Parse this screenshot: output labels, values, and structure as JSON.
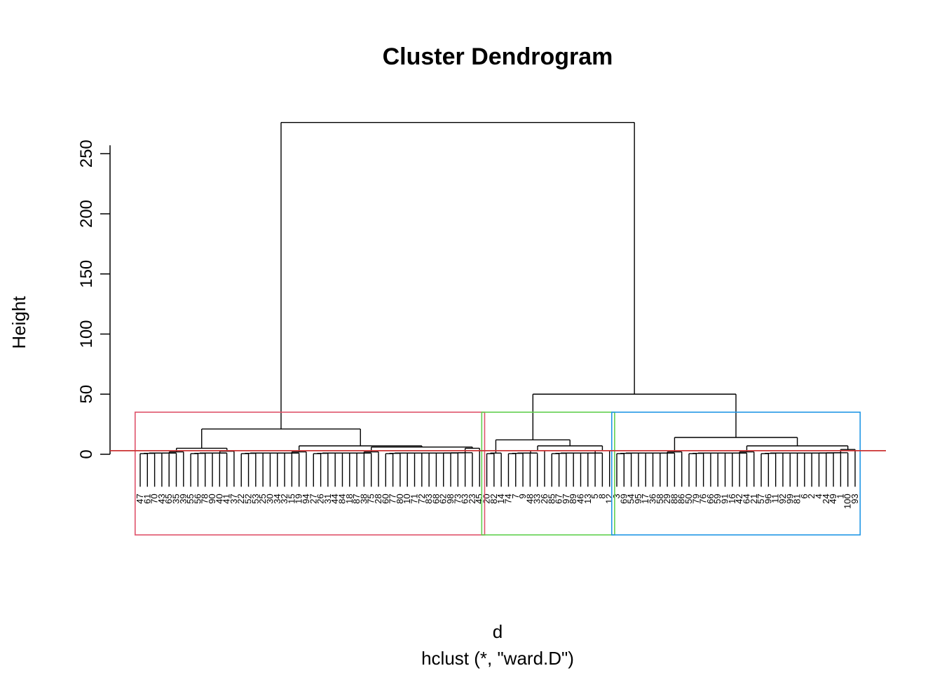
{
  "chart_data": {
    "type": "dendrogram",
    "title": "Cluster Dendrogram",
    "ylabel": "Height",
    "xlabel": "d",
    "sub": "hclust (*, \"ward.D\")",
    "ylim": [
      0,
      276
    ],
    "yticks": [
      0,
      50,
      100,
      150,
      200,
      250
    ],
    "cut_height": 3,
    "cut_color": "#CC3333",
    "leaf_baseline_height": -27,
    "leaves": [
      "47",
      "61",
      "70",
      "43",
      "65",
      "35",
      "39",
      "55",
      "56",
      "78",
      "90",
      "40",
      "41",
      "37",
      "22",
      "52",
      "53",
      "25",
      "30",
      "34",
      "32",
      "15",
      "19",
      "94",
      "27",
      "26",
      "31",
      "44",
      "84",
      "18",
      "87",
      "38",
      "75",
      "28",
      "60",
      "77",
      "80",
      "10",
      "71",
      "72",
      "83",
      "68",
      "62",
      "98",
      "73",
      "63",
      "23",
      "45",
      "20",
      "82",
      "14",
      "74",
      "7",
      "9",
      "48",
      "33",
      "26",
      "85",
      "67",
      "97",
      "89",
      "46",
      "13",
      "5",
      "8",
      "12",
      "3",
      "69",
      "54",
      "95",
      "17",
      "36",
      "58",
      "29",
      "88",
      "86",
      "50",
      "79",
      "76",
      "66",
      "59",
      "91",
      "16",
      "42",
      "64",
      "21",
      "57",
      "96",
      "11",
      "92",
      "99",
      "81",
      "6",
      "2",
      "4",
      "24",
      "49",
      "1",
      "100",
      "93"
    ],
    "merges": [
      {
        "height": 276,
        "left": 0,
        "right": 1
      },
      {
        "height": 21,
        "left": 2,
        "right": 3
      },
      {
        "height": 50,
        "left": 4,
        "right": 5
      }
    ],
    "clusters": [
      {
        "first_leaf": 1,
        "last_leaf": 48,
        "color": "#DF536B"
      },
      {
        "first_leaf": 49,
        "last_leaf": 66,
        "color": "#61D04F"
      },
      {
        "first_leaf": 67,
        "last_leaf": 100,
        "color": "#2297E6"
      }
    ],
    "tree": {
      "h": 276,
      "children": [
        {
          "h": 21,
          "children": [
            {
              "h": 5,
              "children": [
                {
                  "h": 2,
                  "leaves": [
                    1,
                    2,
                    3,
                    4,
                    5,
                    6,
                    7
                  ]
                },
                {
                  "h": 2.5,
                  "leaves": [
                    8,
                    9,
                    10,
                    11,
                    12,
                    13,
                    14
                  ]
                }
              ]
            },
            {
              "h": 7,
              "children": [
                {
                  "h": 2,
                  "leaves": [
                    15,
                    16,
                    17,
                    18,
                    19,
                    20,
                    21,
                    22,
                    23,
                    24
                  ]
                },
                {
                  "h": 6,
                  "children": [
                    {
                      "h": 2,
                      "leaves": [
                        25,
                        26,
                        27,
                        28,
                        29,
                        30,
                        31,
                        32,
                        33,
                        34
                      ]
                    },
                    {
                      "h": 5,
                      "leaves": [
                        35,
                        36,
                        37,
                        38,
                        39,
                        40,
                        41,
                        42,
                        43,
                        44,
                        45,
                        46,
                        47,
                        48
                      ]
                    }
                  ]
                }
              ]
            }
          ]
        },
        {
          "h": 50,
          "children": [
            {
              "h": 12,
              "children": [
                {
                  "h": 1,
                  "leaves": [
                    49,
                    50,
                    51
                  ]
                },
                {
                  "h": 7,
                  "children": [
                    {
                      "h": 3,
                      "leaves": [
                        52,
                        53,
                        54,
                        55,
                        56,
                        57
                      ]
                    },
                    {
                      "h": 3,
                      "leaves": [
                        58,
                        59,
                        60,
                        61,
                        62,
                        63,
                        64,
                        65,
                        66
                      ]
                    }
                  ]
                }
              ]
            },
            {
              "h": 14,
              "children": [
                {
                  "h": 2,
                  "leaves": [
                    67,
                    68,
                    69,
                    70,
                    71,
                    72,
                    73,
                    74,
                    75,
                    76
                  ]
                },
                {
                  "h": 7,
                  "children": [
                    {
                      "h": 2,
                      "leaves": [
                        77,
                        78,
                        79,
                        80,
                        81,
                        82,
                        83,
                        84,
                        85,
                        86
                      ]
                    },
                    {
                      "h": 4,
                      "leaves": [
                        87,
                        88,
                        89,
                        90,
                        91,
                        92,
                        93,
                        94,
                        95,
                        96,
                        97,
                        98,
                        99,
                        100
                      ]
                    }
                  ]
                }
              ]
            }
          ]
        }
      ]
    }
  }
}
